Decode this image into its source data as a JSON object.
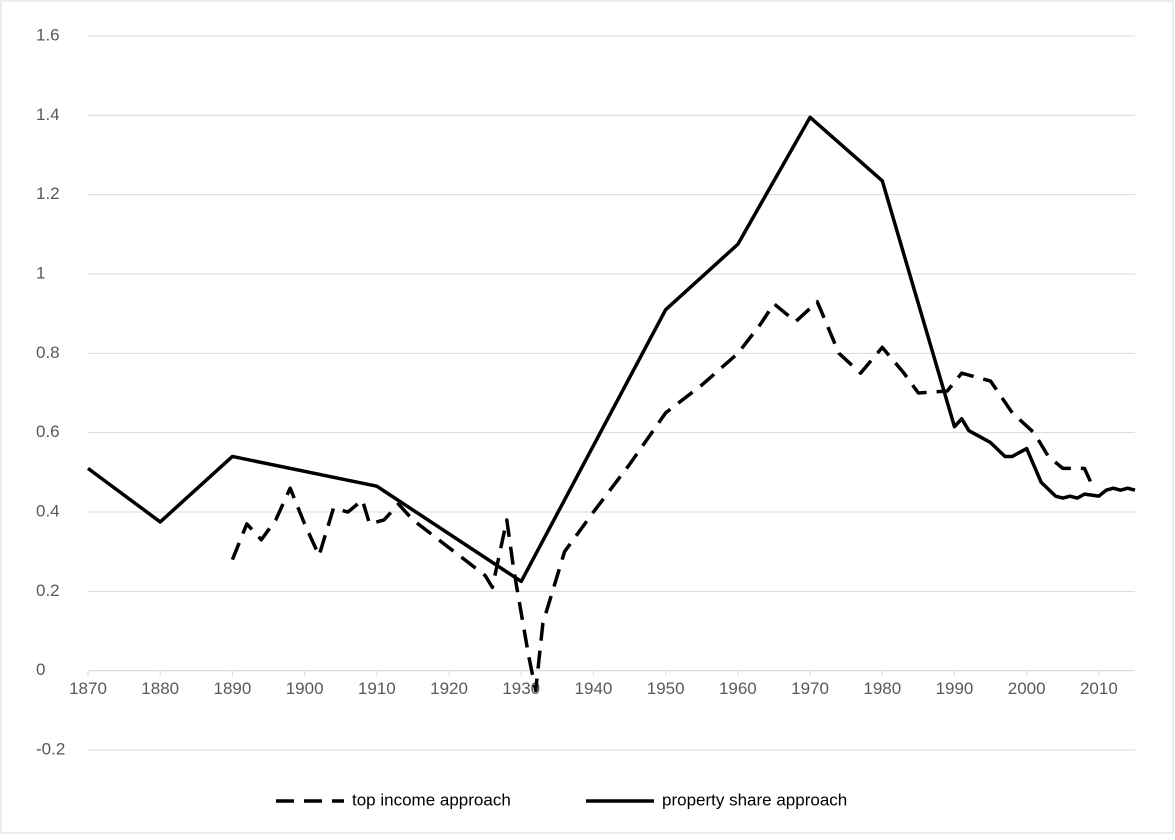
{
  "chart_data": {
    "type": "line",
    "xlim": [
      1870,
      2015
    ],
    "xticks": [
      1870,
      1880,
      1890,
      1900,
      1910,
      1920,
      1930,
      1940,
      1950,
      1960,
      1970,
      1980,
      1990,
      2000,
      2010
    ],
    "ylim": [
      -0.2,
      1.6
    ],
    "yticks": [
      -0.2,
      0,
      0.2,
      0.4,
      0.6,
      0.8,
      1,
      1.2,
      1.4,
      1.6
    ],
    "grid": true,
    "legend": "bottom",
    "series": [
      {
        "name": "top income approach",
        "color": "#000000",
        "dash": true,
        "x": [
          1890,
          1892,
          1894,
          1896,
          1898,
          1900,
          1902,
          1904,
          1906,
          1908,
          1909,
          1911,
          1913,
          1915,
          1920,
          1925,
          1926,
          1928,
          1929,
          1931,
          1932,
          1933,
          1936,
          1940,
          1945,
          1950,
          1955,
          1960,
          1963,
          1965,
          1968,
          1971,
          1974,
          1977,
          1980,
          1983,
          1985,
          1989,
          1991,
          1995,
          1998,
          2001,
          2003,
          2005,
          2008,
          2009
        ],
        "values": [
          0.28,
          0.37,
          0.33,
          0.38,
          0.46,
          0.37,
          0.29,
          0.41,
          0.4,
          0.43,
          0.37,
          0.38,
          0.42,
          0.38,
          0.31,
          0.24,
          0.21,
          0.38,
          0.25,
          0.04,
          -0.05,
          0.12,
          0.3,
          0.4,
          0.52,
          0.65,
          0.72,
          0.8,
          0.87,
          0.925,
          0.88,
          0.93,
          0.8,
          0.75,
          0.815,
          0.75,
          0.7,
          0.705,
          0.75,
          0.73,
          0.65,
          0.6,
          0.54,
          0.51,
          0.51,
          0.47
        ]
      },
      {
        "name": "property share approach",
        "color": "#000000",
        "dash": false,
        "x": [
          1870,
          1880,
          1890,
          1910,
          1930,
          1950,
          1960,
          1970,
          1980,
          1990,
          1991,
          1992,
          1995,
          1997,
          1998,
          2000,
          2002,
          2004,
          2005,
          2006,
          2007,
          2008,
          2010,
          2011,
          2012,
          2013,
          2014,
          2015
        ],
        "values": [
          0.51,
          0.375,
          0.54,
          0.465,
          0.225,
          0.91,
          1.075,
          1.395,
          1.235,
          0.615,
          0.635,
          0.605,
          0.575,
          0.54,
          0.54,
          0.56,
          0.475,
          0.44,
          0.435,
          0.44,
          0.435,
          0.445,
          0.44,
          0.455,
          0.46,
          0.455,
          0.46,
          0.455
        ]
      }
    ]
  }
}
